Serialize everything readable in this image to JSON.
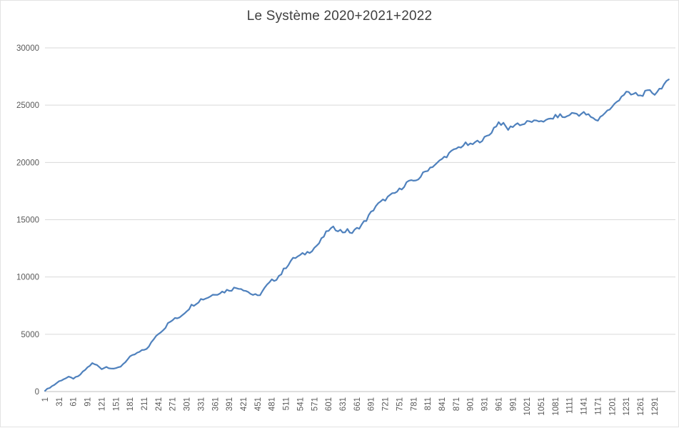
{
  "chart_data": {
    "type": "line",
    "title": "Le Système 2020+2021+2022",
    "xlabel": "",
    "ylabel": "",
    "x_start": 1,
    "x_step": 10,
    "values": [
      100,
      350,
      600,
      900,
      1100,
      1250,
      1150,
      1300,
      1700,
      2100,
      2450,
      2300,
      2000,
      2150,
      2050,
      1980,
      2200,
      2600,
      3000,
      3250,
      3450,
      3650,
      3900,
      4600,
      5100,
      5400,
      5900,
      6250,
      6400,
      6700,
      7100,
      7500,
      7750,
      8050,
      8150,
      8350,
      8550,
      8650,
      8750,
      8900,
      9000,
      9100,
      8950,
      8700,
      8450,
      8300,
      8750,
      9250,
      9650,
      9900,
      10300,
      10900,
      11400,
      11700,
      11850,
      12050,
      12250,
      12550,
      12950,
      13550,
      14100,
      14250,
      14150,
      13950,
      14050,
      13850,
      14200,
      14550,
      15000,
      15600,
      16200,
      16500,
      16800,
      17050,
      17300,
      17600,
      18000,
      18400,
      18250,
      18600,
      19000,
      19400,
      19700,
      19900,
      20300,
      20600,
      20900,
      21200,
      21400,
      21600,
      21500,
      21700,
      21900,
      22100,
      22400,
      23000,
      23500,
      23300,
      22900,
      23200,
      23400,
      23300,
      23500,
      23600,
      23500,
      23700,
      23600,
      23800,
      24000,
      24100,
      23900,
      24200,
      24300,
      24200,
      24300,
      24100,
      23800,
      23700,
      24200,
      24500,
      24800,
      25300,
      25800,
      26100,
      25900,
      26000,
      25800,
      26100,
      26200,
      26000,
      26400,
      26800,
      27100
    ],
    "xticks": [
      1,
      31,
      61,
      91,
      121,
      151,
      181,
      211,
      241,
      271,
      301,
      331,
      361,
      391,
      421,
      451,
      481,
      511,
      541,
      571,
      601,
      631,
      661,
      691,
      721,
      751,
      781,
      811,
      841,
      871,
      901,
      931,
      961,
      991,
      1021,
      1051,
      1081,
      1111,
      1141,
      1171,
      1201,
      1231,
      1261,
      1291
    ],
    "yticks": [
      0,
      5000,
      10000,
      15000,
      20000,
      25000,
      30000
    ],
    "ylim": [
      0,
      30000
    ],
    "xlim": [
      1,
      1335
    ],
    "grid": true,
    "legend": "none",
    "line_color": "#4f81bd",
    "grid_color": "#d9d9d9",
    "axis_color": "#bfbfbf",
    "tick_label_color": "#595959",
    "title_color": "#404040"
  }
}
